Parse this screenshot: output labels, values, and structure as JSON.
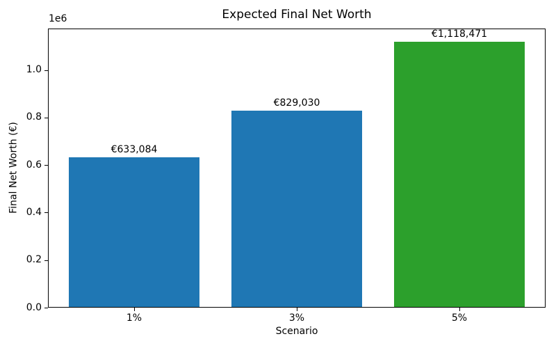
{
  "chart_data": {
    "type": "bar",
    "title": "Expected Final Net Worth",
    "xlabel": "Scenario",
    "ylabel": "Final Net Worth (€)",
    "y_offset_text": "1e6",
    "categories": [
      "1%",
      "3%",
      "5%"
    ],
    "values": [
      633084,
      829030,
      1118471
    ],
    "bar_value_labels": [
      "€633,084",
      "€829,030",
      "€1,118,471"
    ],
    "bar_colors": [
      "#1f77b4",
      "#1f77b4",
      "#2ca02c"
    ],
    "ylim": [
      0,
      1174395
    ],
    "ytick_values": [
      0,
      200000,
      400000,
      600000,
      800000,
      1000000
    ],
    "ytick_labels": [
      "0.0",
      "0.2",
      "0.4",
      "0.6",
      "0.8",
      "1.0"
    ],
    "bar_width_fraction": 0.8,
    "x_margin_units": 0.53,
    "grid": false,
    "legend_position": "none",
    "background_color": "#ffffff",
    "spine_color": "#000000",
    "text_color": "#000000"
  }
}
